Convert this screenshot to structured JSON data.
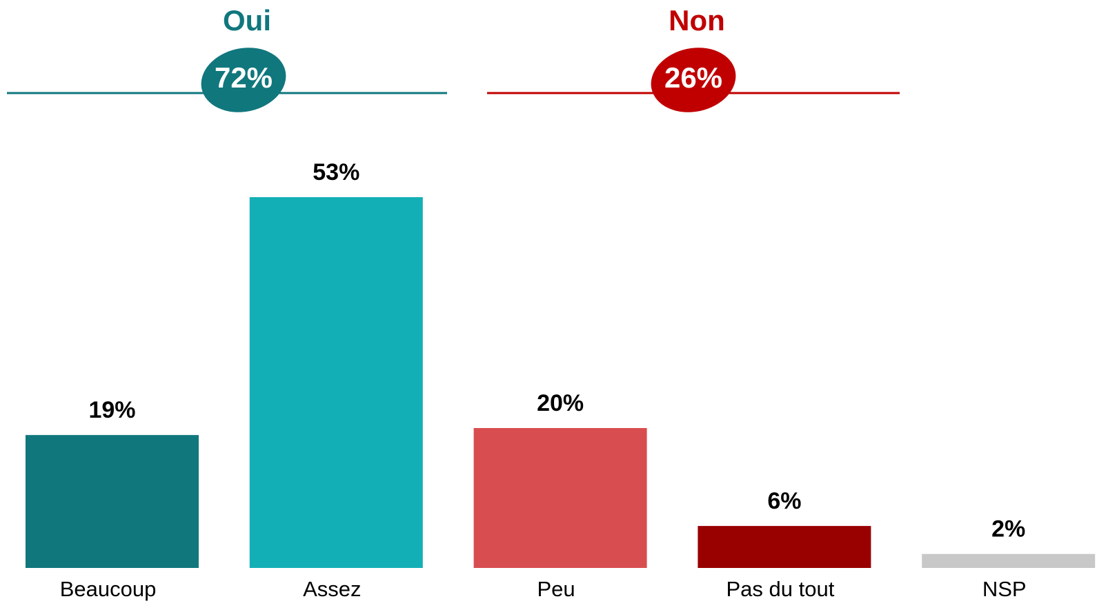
{
  "chart_data": {
    "type": "bar",
    "categories": [
      "Beaucoup",
      "Assez",
      "Peu",
      "Pas du tout",
      "NSP"
    ],
    "values": [
      19,
      53,
      20,
      6,
      2
    ],
    "value_labels": [
      "19%",
      "53%",
      "20%",
      "6%",
      "2%"
    ],
    "colors": [
      "#10777d",
      "#13afb6",
      "#d84d50",
      "#990000",
      "#c8c8c8"
    ],
    "groups": [
      {
        "label": "Oui",
        "value": 72,
        "value_label": "72%",
        "color": "#10777d"
      },
      {
        "label": "Non",
        "value": 26,
        "value_label": "26%",
        "color": "#c00000"
      }
    ]
  }
}
